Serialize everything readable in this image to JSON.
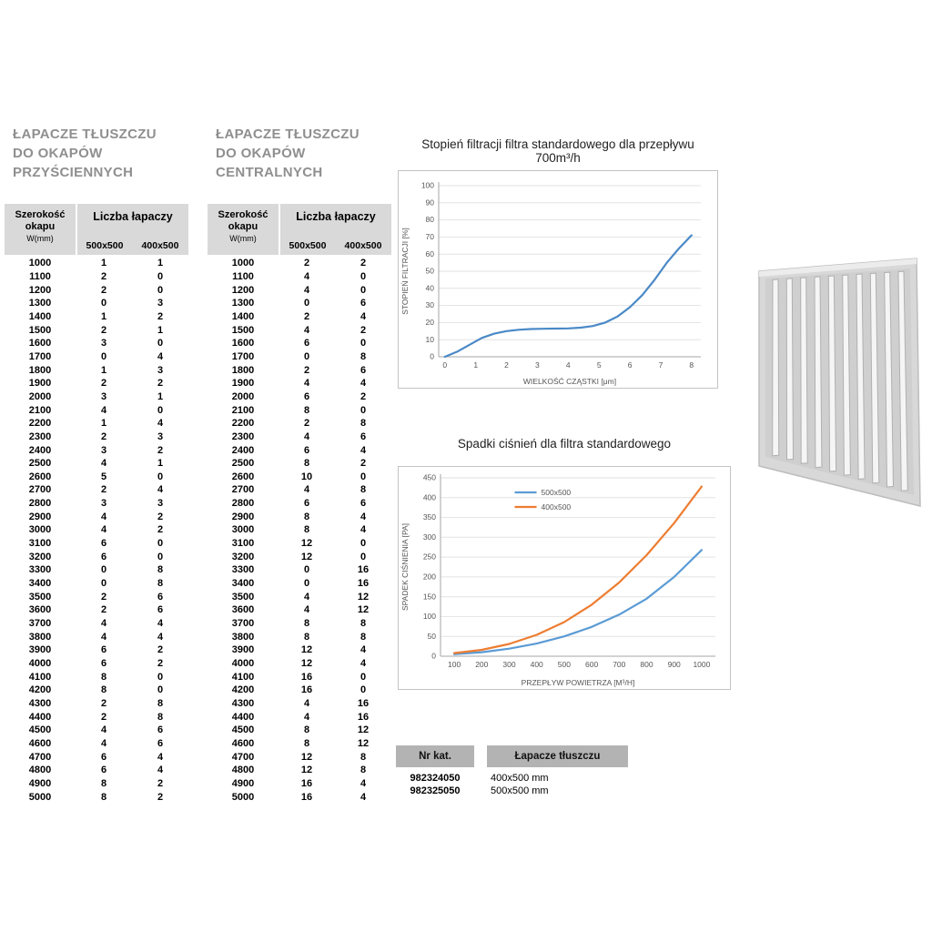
{
  "colors": {
    "table_header_bg": "#d9d9d9",
    "catalog_header_bg": "#b3b3b3",
    "title_grey": "#8f8f8f",
    "chart1_line": "#4a89c7",
    "chart2_blue": "#5b9bd5",
    "chart2_orange": "#ed7d31"
  },
  "left_table": {
    "title_lines": [
      "ŁAPACZE TŁUSZCZU",
      "DO OKAPÓW",
      "PRZYŚCIENNYCH"
    ],
    "header": {
      "col1_line1": "Szerokość",
      "col1_line2": "okapu",
      "col1_sub": "W(mm)",
      "group": "Liczba łapaczy",
      "sub1": "500x500",
      "sub2": "400x500"
    },
    "rows": [
      [
        1000,
        1,
        1
      ],
      [
        1100,
        2,
        0
      ],
      [
        1200,
        2,
        0
      ],
      [
        1300,
        0,
        3
      ],
      [
        1400,
        1,
        2
      ],
      [
        1500,
        2,
        1
      ],
      [
        1600,
        3,
        0
      ],
      [
        1700,
        0,
        4
      ],
      [
        1800,
        1,
        3
      ],
      [
        1900,
        2,
        2
      ],
      [
        2000,
        3,
        1
      ],
      [
        2100,
        4,
        0
      ],
      [
        2200,
        1,
        4
      ],
      [
        2300,
        2,
        3
      ],
      [
        2400,
        3,
        2
      ],
      [
        2500,
        4,
        1
      ],
      [
        2600,
        5,
        0
      ],
      [
        2700,
        2,
        4
      ],
      [
        2800,
        3,
        3
      ],
      [
        2900,
        4,
        2
      ],
      [
        3000,
        4,
        2
      ],
      [
        3100,
        6,
        0
      ],
      [
        3200,
        6,
        0
      ],
      [
        3300,
        0,
        8
      ],
      [
        3400,
        0,
        8
      ],
      [
        3500,
        2,
        6
      ],
      [
        3600,
        2,
        6
      ],
      [
        3700,
        4,
        4
      ],
      [
        3800,
        4,
        4
      ],
      [
        3900,
        6,
        2
      ],
      [
        4000,
        6,
        2
      ],
      [
        4100,
        8,
        0
      ],
      [
        4200,
        8,
        0
      ],
      [
        4300,
        2,
        8
      ],
      [
        4400,
        2,
        8
      ],
      [
        4500,
        4,
        6
      ],
      [
        4600,
        4,
        6
      ],
      [
        4700,
        6,
        4
      ],
      [
        4800,
        6,
        4
      ],
      [
        4900,
        8,
        2
      ],
      [
        5000,
        8,
        2
      ]
    ]
  },
  "center_table": {
    "title_lines": [
      "ŁAPACZE TŁUSZCZU",
      "DO OKAPÓW",
      "CENTRALNYCH"
    ],
    "header": {
      "col1_line1": "Szerokość",
      "col1_line2": "okapu",
      "col1_sub": "W(mm)",
      "group": "Liczba łapaczy",
      "sub1": "500x500",
      "sub2": "400x500"
    },
    "rows": [
      [
        1000,
        2,
        2
      ],
      [
        1100,
        4,
        0
      ],
      [
        1200,
        4,
        0
      ],
      [
        1300,
        0,
        6
      ],
      [
        1400,
        2,
        4
      ],
      [
        1500,
        4,
        2
      ],
      [
        1600,
        6,
        0
      ],
      [
        1700,
        0,
        8
      ],
      [
        1800,
        2,
        6
      ],
      [
        1900,
        4,
        4
      ],
      [
        2000,
        6,
        2
      ],
      [
        2100,
        8,
        0
      ],
      [
        2200,
        2,
        8
      ],
      [
        2300,
        4,
        6
      ],
      [
        2400,
        6,
        4
      ],
      [
        2500,
        8,
        2
      ],
      [
        2600,
        10,
        0
      ],
      [
        2700,
        4,
        8
      ],
      [
        2800,
        6,
        6
      ],
      [
        2900,
        8,
        4
      ],
      [
        3000,
        8,
        4
      ],
      [
        3100,
        12,
        0
      ],
      [
        3200,
        12,
        0
      ],
      [
        3300,
        0,
        16
      ],
      [
        3400,
        0,
        16
      ],
      [
        3500,
        4,
        12
      ],
      [
        3600,
        4,
        12
      ],
      [
        3700,
        8,
        8
      ],
      [
        3800,
        8,
        8
      ],
      [
        3900,
        12,
        4
      ],
      [
        4000,
        12,
        4
      ],
      [
        4100,
        16,
        0
      ],
      [
        4200,
        16,
        0
      ],
      [
        4300,
        4,
        16
      ],
      [
        4400,
        4,
        16
      ],
      [
        4500,
        8,
        12
      ],
      [
        4600,
        8,
        12
      ],
      [
        4700,
        12,
        8
      ],
      [
        4800,
        12,
        8
      ],
      [
        4900,
        16,
        4
      ],
      [
        5000,
        16,
        4
      ]
    ]
  },
  "chart_data": [
    {
      "type": "line",
      "title": "Stopień filtracji filtra standardowego dla przepływu 700m³/h",
      "xlabel": "WIELKOŚĆ CZĄSTKI [μm]",
      "ylabel": "STOPIEŃ FILTRACJI [%]",
      "xlim": [
        -0.2,
        8.3
      ],
      "ylim": [
        0,
        100
      ],
      "xticks": [
        0,
        1,
        2,
        3,
        4,
        5,
        6,
        7,
        8
      ],
      "yticks": [
        0,
        10,
        20,
        30,
        40,
        50,
        60,
        70,
        80,
        90,
        100
      ],
      "grid": "horizontal",
      "legend": false,
      "series": [
        {
          "name": "stopień filtracji",
          "color": "#4a89c7",
          "x": [
            0,
            0.4,
            0.8,
            1.2,
            1.6,
            2,
            2.4,
            2.8,
            3.2,
            3.6,
            4,
            4.4,
            4.8,
            5.2,
            5.6,
            6,
            6.4,
            6.8,
            7.2,
            7.6,
            8
          ],
          "y": [
            0,
            3,
            7,
            11,
            13.5,
            15,
            15.8,
            16.2,
            16.4,
            16.5,
            16.6,
            17,
            18,
            20,
            23.5,
            29,
            36,
            45,
            55,
            63.5,
            71
          ]
        }
      ]
    },
    {
      "type": "line",
      "title": "Spadki ciśnień dla filtra standardowego",
      "xlabel": "PRZEPŁYW POWIETRZA [M³/H]",
      "ylabel": "SPADEK CIŚNIENIA [PA]",
      "xlim": [
        50,
        1050
      ],
      "ylim": [
        0,
        450
      ],
      "xticks": [
        100,
        200,
        300,
        400,
        500,
        600,
        700,
        800,
        900,
        1000
      ],
      "yticks": [
        0,
        50,
        100,
        150,
        200,
        250,
        300,
        350,
        400,
        450
      ],
      "grid": "horizontal",
      "legend": true,
      "series": [
        {
          "name": "500x500",
          "color": "#5b9bd5",
          "x": [
            100,
            200,
            300,
            400,
            500,
            600,
            700,
            800,
            900,
            1000
          ],
          "y": [
            5,
            10,
            19,
            32,
            50,
            74,
            105,
            145,
            200,
            268
          ]
        },
        {
          "name": "400x500",
          "color": "#ed7d31",
          "x": [
            100,
            200,
            300,
            400,
            500,
            600,
            700,
            800,
            900,
            1000
          ],
          "y": [
            8,
            16,
            31,
            54,
            86,
            130,
            186,
            255,
            336,
            428
          ]
        }
      ]
    }
  ],
  "catalog_table": {
    "headers": [
      "Nr kat.",
      "Łapacze tłuszczu"
    ],
    "rows": [
      [
        "982324050",
        "400x500 mm"
      ],
      [
        "982325050",
        "500x500 mm"
      ]
    ]
  },
  "product_image": {
    "name": "grease-filter-baffle",
    "frame_color": "#d8d8d8",
    "slot_color": "#f5f5f5"
  }
}
